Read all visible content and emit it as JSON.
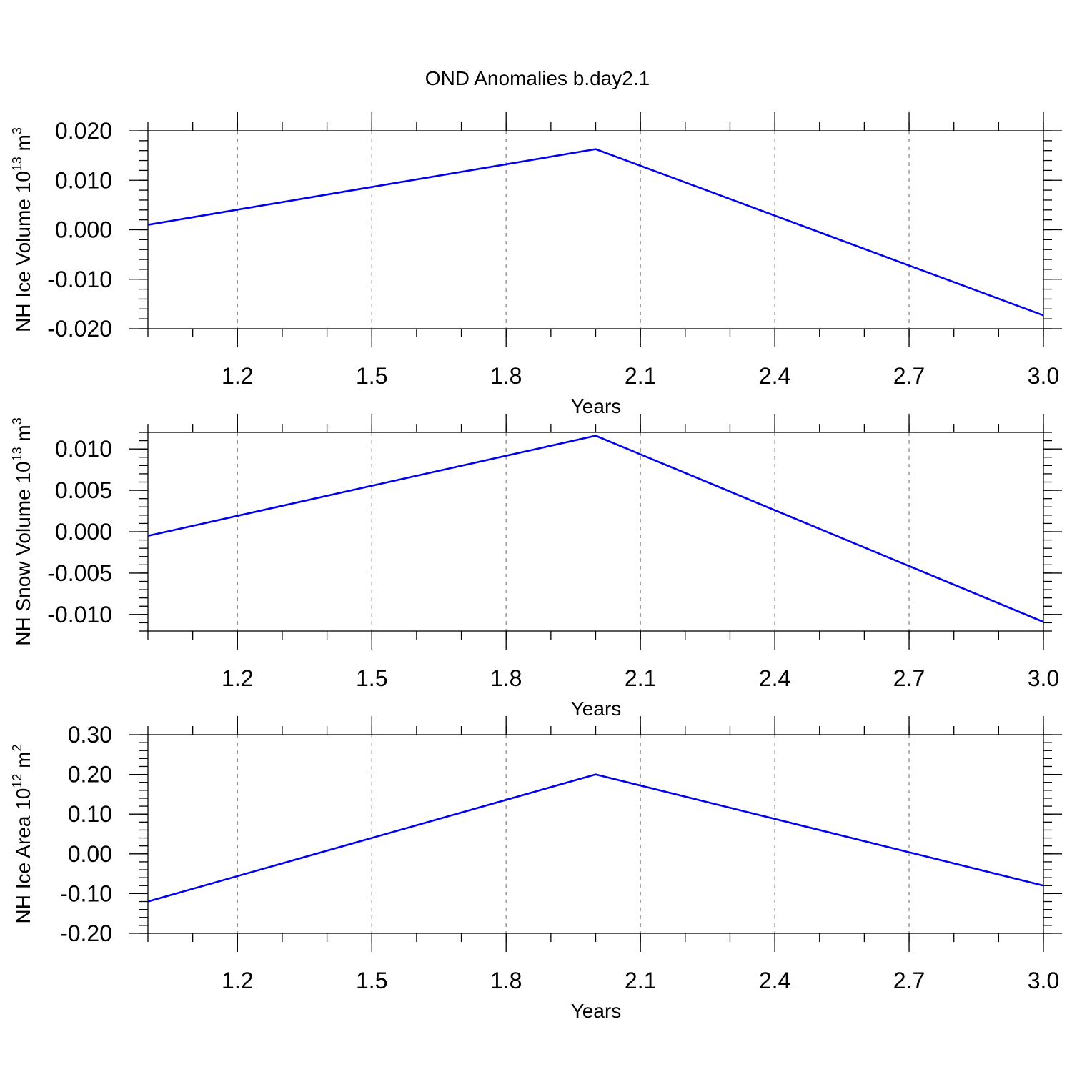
{
  "title": "OND Anomalies b.day2.1",
  "colors": {
    "series": "#0000ee",
    "grid": "#8c8c8c",
    "axis": "#000000"
  },
  "chart_data": [
    {
      "type": "line",
      "title": "OND Anomalies b.day2.1",
      "xlabel": "Years",
      "ylabel": {
        "text": "NH Ice Volume 10",
        "sup": "13",
        "unit": " m",
        "unit_sup": "3"
      },
      "x": [
        1,
        2,
        3
      ],
      "series": [
        {
          "name": "NH Ice Volume",
          "values": [
            0.001,
            0.0163,
            -0.0173
          ]
        }
      ],
      "xlim": [
        1,
        3
      ],
      "ylim": [
        -0.02,
        0.02
      ],
      "xticks": [
        1.2,
        1.5,
        1.8,
        2.1,
        2.4,
        2.7,
        3.0
      ],
      "xtick_labels": [
        "1.2",
        "1.5",
        "1.8",
        "2.1",
        "2.4",
        "2.7",
        "3.0"
      ],
      "yticks": [
        0.02,
        0.01,
        0.0,
        -0.01,
        -0.02
      ],
      "ytick_labels": [
        "0.020",
        "0.010",
        "0.000",
        "-0.010",
        "-0.020"
      ],
      "grid": "x-dashed"
    },
    {
      "type": "line",
      "xlabel": "Years",
      "ylabel": {
        "text": "NH Snow Volume 10",
        "sup": "13",
        "unit": " m",
        "unit_sup": "3"
      },
      "x": [
        1,
        2,
        3
      ],
      "series": [
        {
          "name": "NH Snow Volume",
          "values": [
            -0.0005,
            0.0116,
            -0.0109
          ]
        }
      ],
      "xlim": [
        1,
        3
      ],
      "ylim": [
        -0.012,
        0.012
      ],
      "xticks": [
        1.2,
        1.5,
        1.8,
        2.1,
        2.4,
        2.7,
        3.0
      ],
      "xtick_labels": [
        "1.2",
        "1.5",
        "1.8",
        "2.1",
        "2.4",
        "2.7",
        "3.0"
      ],
      "yticks": [
        0.01,
        0.005,
        0.0,
        -0.005,
        -0.01
      ],
      "ytick_labels": [
        "0.010",
        "0.005",
        "0.000",
        "-0.005",
        "-0.010"
      ],
      "grid": "x-dashed"
    },
    {
      "type": "line",
      "xlabel": "Years",
      "ylabel": {
        "text": "NH Ice Area 10",
        "sup": "12",
        "unit": " m",
        "unit_sup": "2"
      },
      "x": [
        1,
        2,
        3
      ],
      "series": [
        {
          "name": "NH Ice Area",
          "values": [
            -0.12,
            0.2,
            -0.08
          ]
        }
      ],
      "xlim": [
        1,
        3
      ],
      "ylim": [
        -0.2,
        0.3
      ],
      "xticks": [
        1.2,
        1.5,
        1.8,
        2.1,
        2.4,
        2.7,
        3.0
      ],
      "xtick_labels": [
        "1.2",
        "1.5",
        "1.8",
        "2.1",
        "2.4",
        "2.7",
        "3.0"
      ],
      "yticks": [
        0.3,
        0.2,
        0.1,
        0.0,
        -0.1,
        -0.2
      ],
      "ytick_labels": [
        "0.30",
        "0.20",
        "0.10",
        "0.00",
        "-0.10",
        "-0.20"
      ],
      "grid": "x-dashed"
    }
  ]
}
